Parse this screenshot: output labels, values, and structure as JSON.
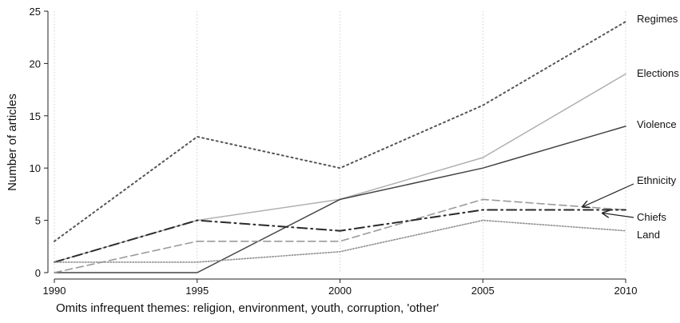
{
  "chart_data": {
    "type": "line",
    "x": [
      1990,
      1995,
      2000,
      2005,
      2010
    ],
    "xticks": [
      "1990",
      "1995",
      "2000",
      "2005",
      "2010"
    ],
    "yticks": [
      "0",
      "5",
      "10",
      "15",
      "20",
      "25"
    ],
    "ylim": [
      0,
      25
    ],
    "xlim": [
      1990,
      2010
    ],
    "ylabel": "Number of articles",
    "note": "Omits infrequent themes: religion, environment, youth, corruption, 'other'",
    "grid": "vertical dotted",
    "series": [
      {
        "name": "Regimes",
        "values": [
          3,
          13,
          10,
          16,
          24
        ],
        "color": "#555555",
        "style": "dotted"
      },
      {
        "name": "Elections",
        "values": [
          1,
          5,
          7,
          11,
          19
        ],
        "color": "#b0b0b0",
        "style": "solid"
      },
      {
        "name": "Violence",
        "values": [
          0,
          0,
          7,
          10,
          14
        ],
        "color": "#444444",
        "style": "solid"
      },
      {
        "name": "Ethnicity",
        "values": [
          0,
          3,
          3,
          7,
          6
        ],
        "color": "#9a9a9a",
        "style": "dashed"
      },
      {
        "name": "Chiefs",
        "values": [
          1,
          5,
          4,
          6,
          6
        ],
        "color": "#2a2a2a",
        "style": "dashdot"
      },
      {
        "name": "Land",
        "values": [
          1,
          1,
          2,
          5,
          4
        ],
        "color": "#909090",
        "style": "dotted-fine"
      }
    ]
  }
}
